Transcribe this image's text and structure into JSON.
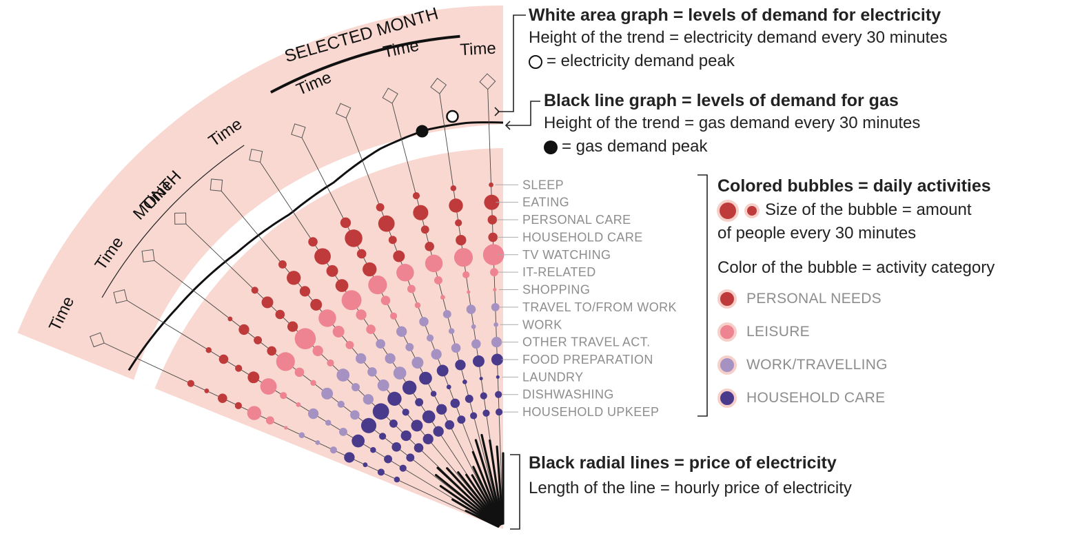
{
  "fan": {
    "month_label": "MONTH",
    "selected_label": "SELECTED MONTH",
    "time_label": "Time",
    "time_label_count": 7
  },
  "activities": [
    {
      "name": "SLEEP",
      "category": "personal_needs"
    },
    {
      "name": "EATING",
      "category": "personal_needs"
    },
    {
      "name": "PERSONAL CARE",
      "category": "personal_needs"
    },
    {
      "name": "HOUSEHOLD CARE",
      "category": "personal_needs"
    },
    {
      "name": "TV WATCHING",
      "category": "leisure"
    },
    {
      "name": "IT-RELATED",
      "category": "leisure"
    },
    {
      "name": "SHOPPING",
      "category": "leisure"
    },
    {
      "name": "TRAVEL TO/FROM WORK",
      "category": "work_travelling"
    },
    {
      "name": "WORK",
      "category": "work_travelling"
    },
    {
      "name": "OTHER TRAVEL ACT.",
      "category": "work_travelling"
    },
    {
      "name": "FOOD PREPARATION",
      "category": "household_care"
    },
    {
      "name": "LAUNDRY",
      "category": "household_care"
    },
    {
      "name": "DISHWASHING",
      "category": "household_care"
    },
    {
      "name": "HOUSEHOLD UPKEEP",
      "category": "household_care"
    }
  ],
  "colors": {
    "background_band": "#f8d8d0",
    "personal_needs": "#bf3b3b",
    "leisure": "#ee8492",
    "work_travelling": "#a592c3",
    "household_care": "#4a3a8c",
    "ring": "#f6cfc8"
  },
  "legend": {
    "electricity": {
      "title": "White area graph =  levels of demand for electricity",
      "height_text": "Height of the trend = electricity demand every 30 minutes",
      "peak_text": "= electricity demand peak"
    },
    "gas": {
      "title": "Black line graph =  levels of demand for gas",
      "height_text": "Height of the trend = gas demand every 30 minutes",
      "peak_text": "= gas demand peak"
    },
    "bubbles": {
      "title": "Colored bubbles = daily activities",
      "size_text_1": "Size of the bubble = amount",
      "size_text_2": "of people every 30 minutes",
      "color_text": "Color of the bubble = activity category",
      "categories": [
        {
          "key": "personal_needs",
          "label": "PERSONAL NEEDS"
        },
        {
          "key": "leisure",
          "label": "LEISURE"
        },
        {
          "key": "work_travelling",
          "label": "WORK/TRAVELLING"
        },
        {
          "key": "household_care",
          "label": "HOUSEHOLD CARE"
        }
      ]
    },
    "radial": {
      "title": "Black radial lines = price of electricity",
      "length_text": "Length of the line = hourly price of electricity"
    }
  }
}
